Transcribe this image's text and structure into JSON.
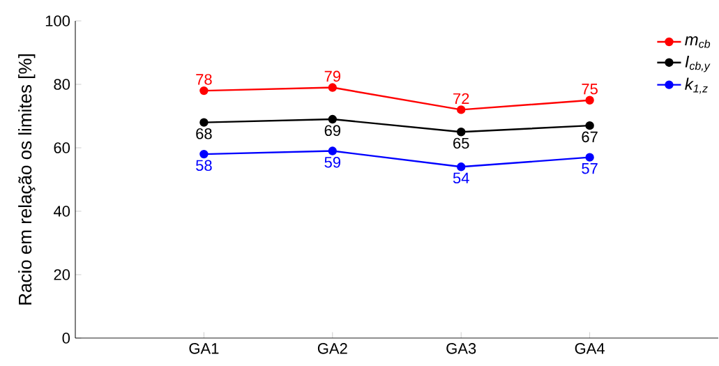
{
  "chart_data": {
    "type": "line",
    "ylabel": "Racio em relação os limites [%]",
    "categories": [
      "GA1",
      "GA2",
      "GA3",
      "GA4"
    ],
    "series": [
      {
        "name": "m$_{cb}$",
        "color": "#ff0000",
        "values": [
          78,
          79,
          72,
          75
        ]
      },
      {
        "name": "I$_{cb,y}$",
        "color": "#000000",
        "values": [
          68,
          69,
          65,
          67
        ]
      },
      {
        "name": "k$_{1,z}$",
        "color": "#0000ff",
        "values": [
          58,
          59,
          54,
          57
        ]
      }
    ],
    "ylim": [
      0,
      100
    ],
    "yticks": [
      0,
      20,
      40,
      60,
      80,
      100
    ],
    "data_labels": true,
    "legend": "top right",
    "marker": "circle",
    "line_style": "solid",
    "grid": false
  }
}
